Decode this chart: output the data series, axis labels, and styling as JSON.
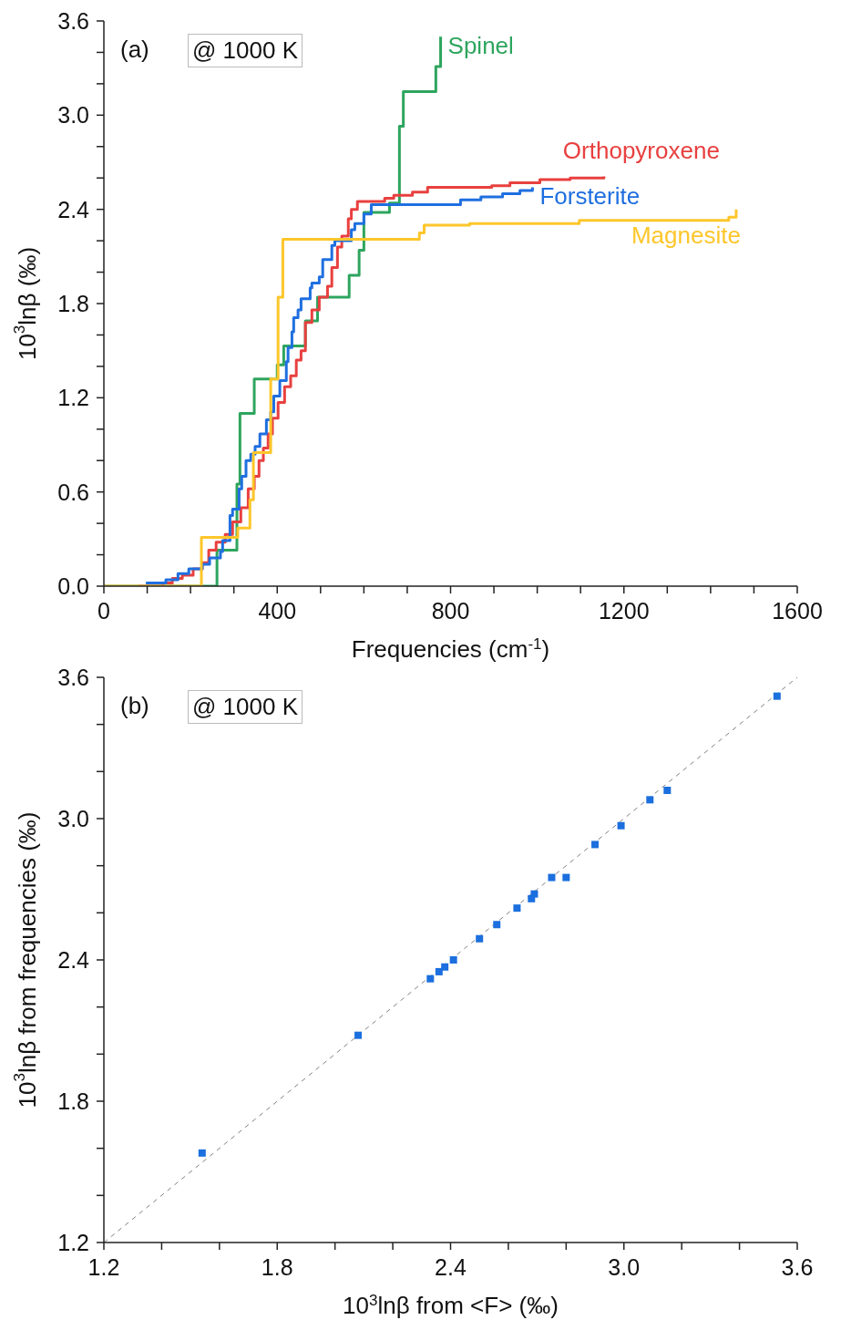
{
  "chart_data": [
    {
      "type": "step",
      "xlabel": "Frequencies (cm$^{-1}$)",
      "ylabel": "10$^{3}$lnβ (‰)",
      "annotations": [
        "(a)",
        "@ 1000 K"
      ],
      "legend": false,
      "xlim": [
        0,
        1600
      ],
      "xticks": [
        0,
        {
          "value": 100,
          "label": null
        },
        {
          "value": 200,
          "label": null
        },
        {
          "value": 300,
          "label": null
        },
        400,
        {
          "value": 500,
          "label": null
        },
        {
          "value": 600,
          "label": null
        },
        {
          "value": 700,
          "label": null
        },
        800,
        {
          "value": 900,
          "label": null
        },
        {
          "value": 1000,
          "label": null
        },
        {
          "value": 1100,
          "label": null
        },
        1200,
        {
          "value": 1300,
          "label": null
        },
        {
          "value": 1400,
          "label": null
        },
        {
          "value": 1500,
          "label": null
        },
        1600
      ],
      "ylim": [
        0,
        3.6
      ],
      "yticks": [
        {
          "value": 0,
          "label": "0.0"
        },
        {
          "value": 0.2,
          "label": null
        },
        {
          "value": 0.4,
          "label": null
        },
        0.6,
        {
          "value": 0.8,
          "label": null
        },
        {
          "value": 1,
          "label": null
        },
        1.2,
        {
          "value": 1.4,
          "label": null
        },
        {
          "value": 1.6,
          "label": null
        },
        1.8,
        {
          "value": 2,
          "label": null
        },
        {
          "value": 2.2,
          "label": null
        },
        2.4,
        {
          "value": 2.6,
          "label": null
        },
        {
          "value": 2.8,
          "label": null
        },
        {
          "value": 3,
          "label": "3.0"
        },
        {
          "value": 3.2,
          "label": null
        },
        {
          "value": 3.4,
          "label": null
        },
        3.6
      ],
      "series": [
        {
          "name": "Spinel",
          "color": "#2ea55e",
          "x": [
            0,
            261,
            307,
            314,
            347,
            400,
            415,
            465,
            493,
            566,
            589,
            600,
            659,
            682,
            691,
            766,
            777
          ],
          "values": [
            0,
            0.23,
            0.65,
            1.1,
            1.32,
            1.41,
            1.53,
            1.69,
            1.84,
            1.98,
            2.14,
            2.38,
            2.44,
            2.93,
            3.15,
            3.31,
            3.5
          ]
        },
        {
          "name": "Orthopyroxene",
          "color": "#e8403f",
          "x": [
            80,
            137,
            158,
            181,
            206,
            227,
            242,
            259,
            280,
            297,
            316,
            333,
            347,
            358,
            368,
            379,
            389,
            402,
            417,
            431,
            444,
            455,
            465,
            480,
            497,
            516,
            526,
            539,
            549,
            564,
            571,
            585,
            648,
            669,
            712,
            747,
            895,
            937,
            1006,
            1076,
            1154
          ],
          "values": [
            0,
            0.02,
            0.05,
            0.07,
            0.11,
            0.15,
            0.23,
            0.28,
            0.33,
            0.41,
            0.5,
            0.62,
            0.7,
            0.8,
            0.88,
            0.97,
            1.07,
            1.17,
            1.27,
            1.34,
            1.44,
            1.5,
            1.68,
            1.76,
            1.84,
            1.91,
            2.03,
            2.16,
            2.23,
            2.34,
            2.4,
            2.45,
            2.47,
            2.49,
            2.51,
            2.54,
            2.55,
            2.57,
            2.59,
            2.6,
            2.61
          ]
        },
        {
          "name": "Forsterite",
          "color": "#1f6fe0",
          "x": [
            97,
            143,
            171,
            196,
            227,
            244,
            269,
            274,
            291,
            297,
            312,
            318,
            328,
            339,
            349,
            360,
            375,
            385,
            392,
            406,
            421,
            425,
            434,
            438,
            448,
            455,
            476,
            480,
            497,
            505,
            526,
            533,
            571,
            579,
            600,
            617,
            823,
            870,
            920,
            960,
            989
          ],
          "values": [
            0.02,
            0.04,
            0.08,
            0.11,
            0.14,
            0.18,
            0.22,
            0.29,
            0.45,
            0.49,
            0.62,
            0.7,
            0.8,
            0.84,
            0.89,
            0.97,
            1.06,
            1.11,
            1.21,
            1.31,
            1.43,
            1.52,
            1.62,
            1.71,
            1.76,
            1.83,
            1.9,
            1.93,
            1.97,
            2.08,
            2.17,
            2.2,
            2.27,
            2.31,
            2.37,
            2.43,
            2.46,
            2.48,
            2.5,
            2.52,
            2.54
          ]
        },
        {
          "name": "Magnesite",
          "color": "#fdc62a",
          "x": [
            0,
            225,
            309,
            337,
            345,
            385,
            402,
            413,
            728,
            739,
            844,
            1097,
            1442,
            1459
          ],
          "values": [
            0,
            0.31,
            0.37,
            0.55,
            0.85,
            1.32,
            1.84,
            2.21,
            2.25,
            2.3,
            2.31,
            2.33,
            2.35,
            2.4
          ]
        }
      ]
    },
    {
      "type": "scatter",
      "xlabel": "10$^{3}$lnβ from <F> (‰)",
      "ylabel": "10$^{3}$lnβ from frequencies (‰)",
      "annotations": [
        "(b)",
        "@ 1000 K"
      ],
      "legend": false,
      "xlim": [
        1.2,
        3.6
      ],
      "xticks": [
        1.2,
        {
          "value": 1.4,
          "label": null
        },
        {
          "value": 1.6,
          "label": null
        },
        1.8,
        {
          "value": 2,
          "label": null
        },
        {
          "value": 2.2,
          "label": null
        },
        2.4,
        {
          "value": 2.6,
          "label": null
        },
        {
          "value": 2.8,
          "label": null
        },
        {
          "value": 3,
          "label": "3.0"
        },
        {
          "value": 3.2,
          "label": null
        },
        {
          "value": 3.4,
          "label": null
        },
        3.6
      ],
      "ylim": [
        1.2,
        3.6
      ],
      "yticks": [
        1.2,
        {
          "value": 1.4,
          "label": null
        },
        {
          "value": 1.6,
          "label": null
        },
        1.8,
        {
          "value": 2,
          "label": null
        },
        {
          "value": 2.2,
          "label": null
        },
        2.4,
        {
          "value": 2.6,
          "label": null
        },
        {
          "value": 2.8,
          "label": null
        },
        {
          "value": 3,
          "label": "3.0"
        },
        {
          "value": 3.2,
          "label": null
        },
        {
          "value": 3.4,
          "label": null
        },
        3.6
      ],
      "series": [
        {
          "marker": "square",
          "color": "#1b6fde",
          "x": [
            1.54,
            2.08,
            2.33,
            2.36,
            2.38,
            2.41,
            2.5,
            2.56,
            2.63,
            2.68,
            2.69,
            2.75,
            2.8,
            2.9,
            2.99,
            3.09,
            3.15,
            3.53
          ],
          "values": [
            1.58,
            2.08,
            2.32,
            2.35,
            2.37,
            2.4,
            2.49,
            2.55,
            2.62,
            2.66,
            2.68,
            2.75,
            2.75,
            2.89,
            2.97,
            3.08,
            3.12,
            3.52
          ]
        },
        {
          "type": "line",
          "color": "#808080",
          "line_style": "dashed",
          "x": [
            1.2,
            3.6
          ],
          "values": [
            1.2,
            3.6
          ]
        }
      ]
    }
  ]
}
